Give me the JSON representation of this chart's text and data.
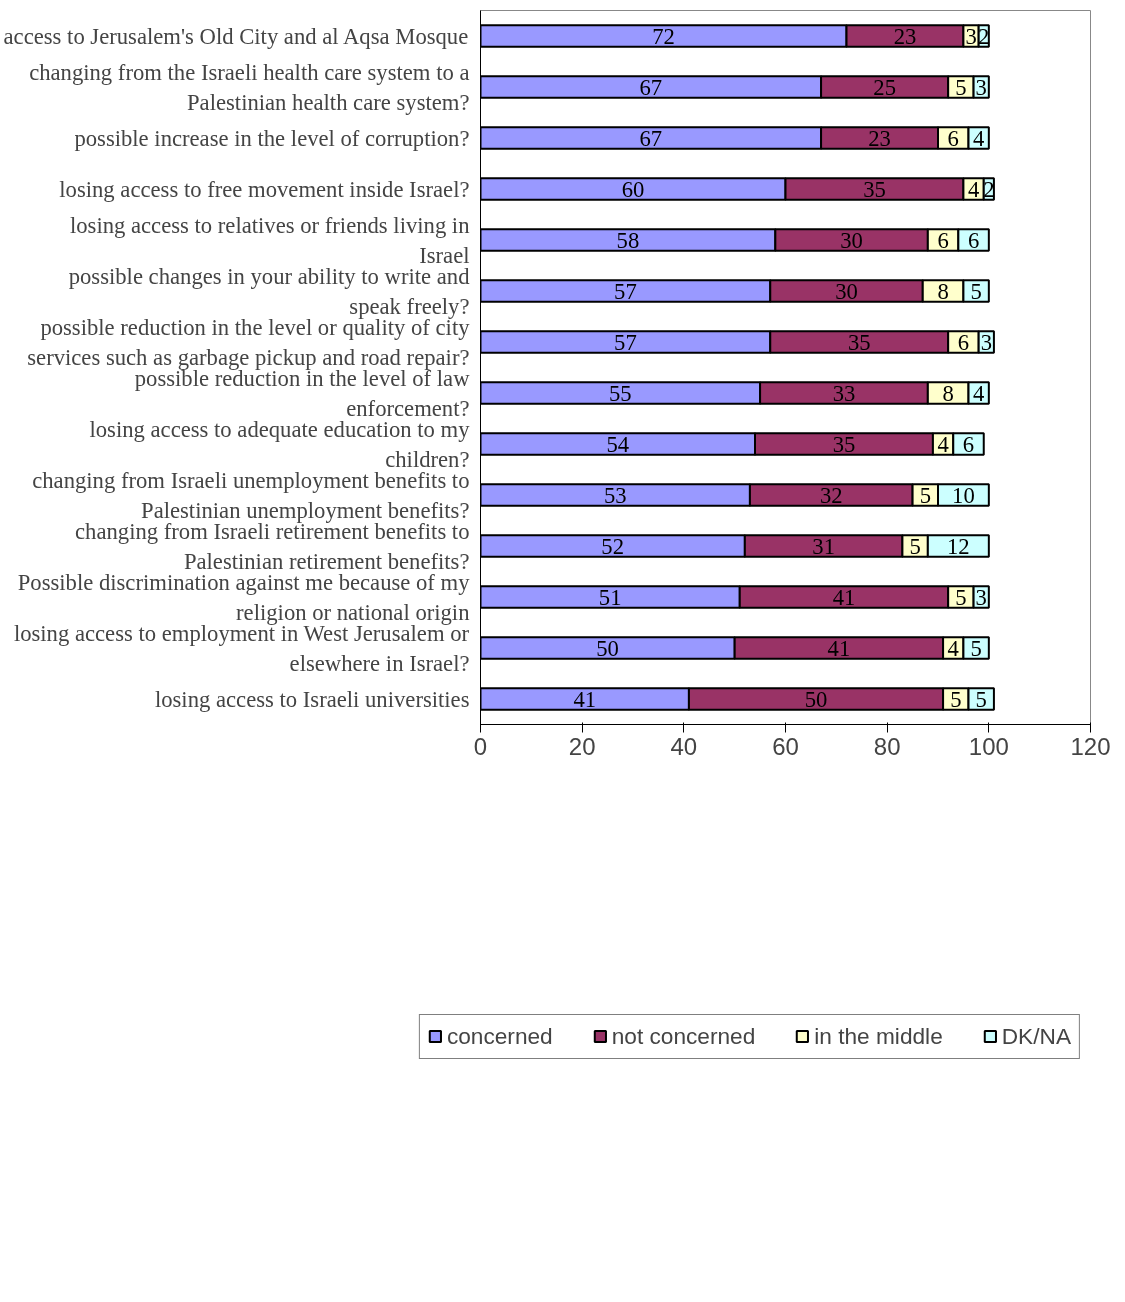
{
  "chart_data": {
    "type": "bar",
    "orientation": "horizontal",
    "stacked": true,
    "data_labels": true,
    "grid": false,
    "legend": "bottom",
    "categories": [
      "access to Jerusalem's Old City and al Aqsa Mosque",
      "changing from the Israeli health care system to a Palestinian health care system?",
      "possible increase in the level of corruption?",
      "losing access to free movement inside Israel?",
      "losing access to relatives or friends living in Israel",
      "possible changes in your ability to write and speak freely?",
      "possible reduction in the level or quality of city services such as garbage pickup and road repair?",
      "possible reduction in the level of law enforcement?",
      "losing access to adequate education to my children?",
      "changing from Israeli unemployment benefits to Palestinian unemployment benefits?",
      "changing from Israeli retirement benefits to Palestinian retirement benefits?",
      "Possible discrimination against me because of my religion or national origin",
      "losing access to employment in West Jerusalem or elsewhere in Israel?",
      "losing access to Israeli universities"
    ],
    "series": [
      {
        "name": "concerned",
        "color": "#9999ff",
        "values": [
          72,
          67,
          67,
          60,
          58,
          57,
          57,
          55,
          54,
          53,
          52,
          51,
          50,
          41
        ]
      },
      {
        "name": "not concerned",
        "color": "#993366",
        "values": [
          23,
          25,
          23,
          35,
          30,
          30,
          35,
          33,
          35,
          32,
          31,
          41,
          41,
          50
        ]
      },
      {
        "name": "in the middle",
        "color": "#ffffcc",
        "values": [
          3,
          5,
          6,
          4,
          6,
          8,
          6,
          8,
          4,
          5,
          5,
          5,
          4,
          5
        ]
      },
      {
        "name": "DK/NA",
        "color": "#ccffff",
        "values": [
          2,
          3,
          4,
          2,
          6,
          5,
          3,
          4,
          6,
          10,
          12,
          3,
          5,
          5
        ]
      }
    ],
    "xlim": [
      0,
      120
    ],
    "xticks": [
      0,
      20,
      40,
      60,
      80,
      100,
      120
    ]
  }
}
